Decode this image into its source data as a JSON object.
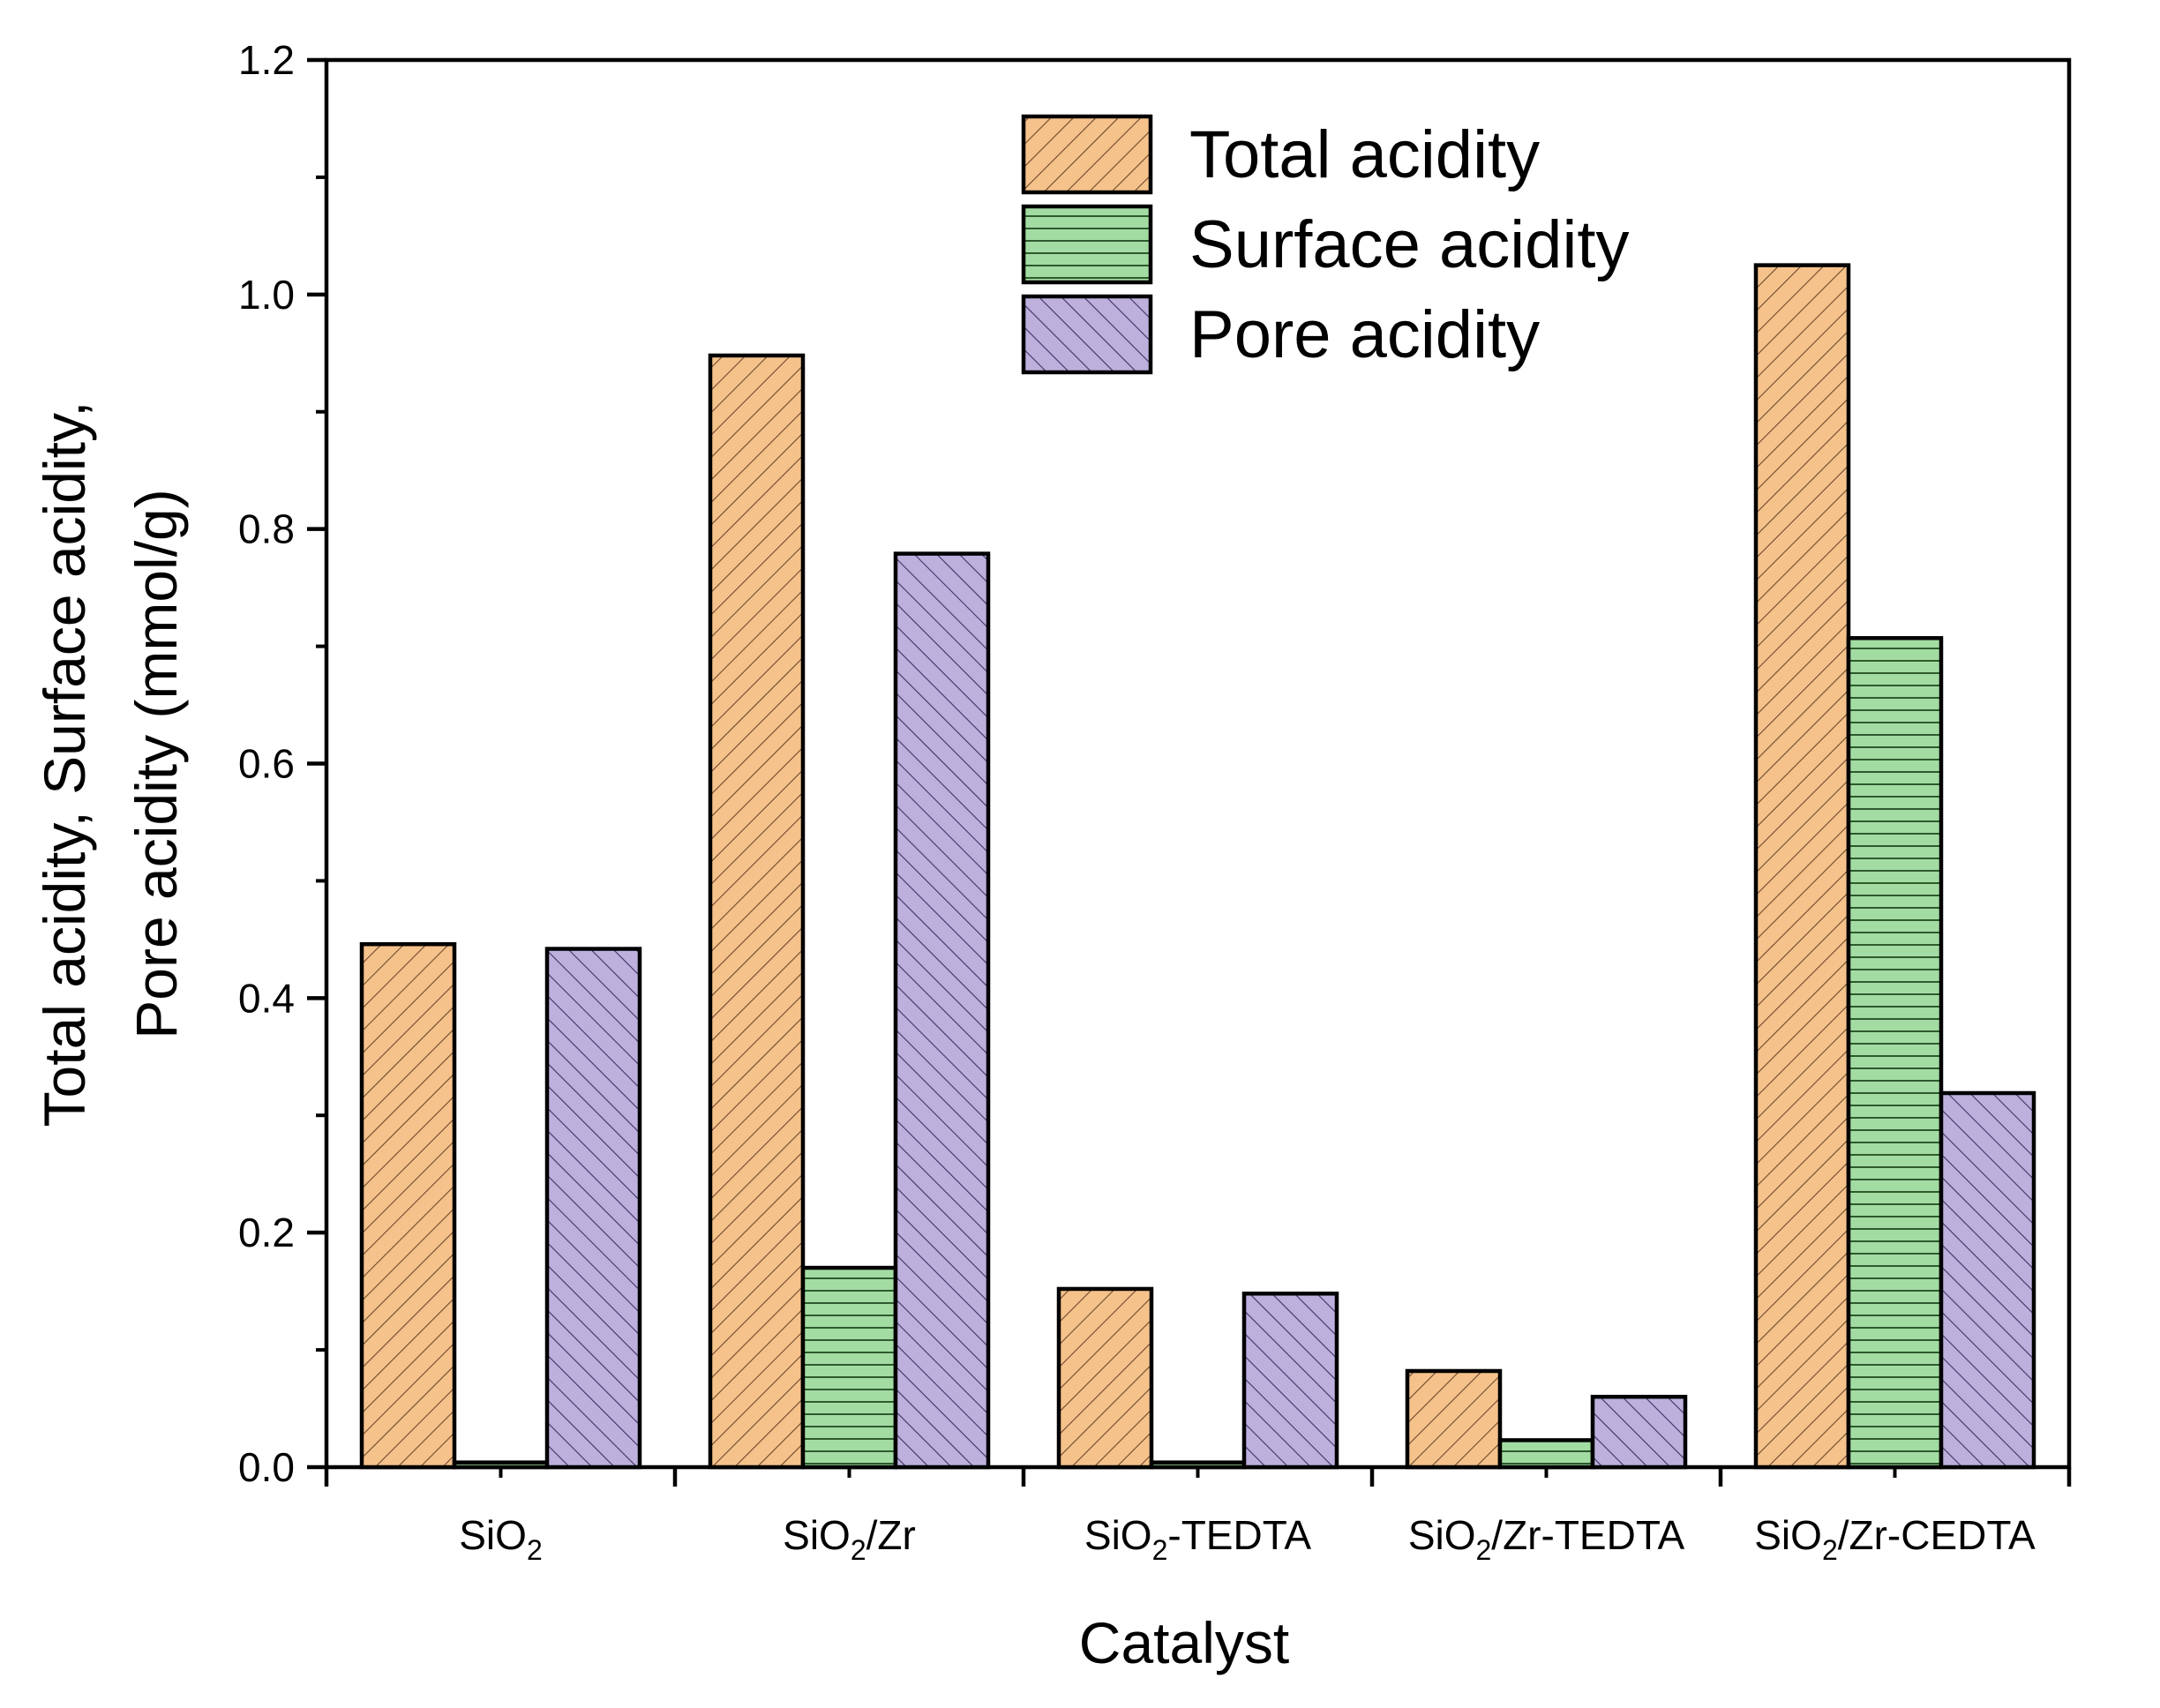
{
  "chart_data": {
    "type": "bar",
    "title": "",
    "xlabel": "Catalyst",
    "ylabel_lines": [
      "Total acidity, Surface acidity,",
      "Pore acidity (mmol/g)"
    ],
    "ylim": [
      0,
      1.2
    ],
    "y_ticks": [
      "0.0",
      "0.2",
      "0.4",
      "0.6",
      "0.8",
      "1.0",
      "1.2"
    ],
    "y_tick_values": [
      0,
      0.2,
      0.4,
      0.6,
      0.8,
      1.0,
      1.2
    ],
    "grid": false,
    "legend_position": "top-center",
    "categories": [
      {
        "base": "SiO",
        "sub": "2",
        "rest": ""
      },
      {
        "base": "SiO",
        "sub": "2",
        "rest": "/Zr"
      },
      {
        "base": "SiO",
        "sub": "2",
        "rest": "-TEDTA"
      },
      {
        "base": "SiO",
        "sub": "2",
        "rest": "/Zr-TEDTA"
      },
      {
        "base": "SiO",
        "sub": "2",
        "rest": "/Zr-CEDTA"
      }
    ],
    "series": [
      {
        "name": "Total acidity",
        "color": "#f6c28b",
        "pattern": "diag-forward",
        "values": [
          0.446,
          0.948,
          0.152,
          0.082,
          1.025
        ]
      },
      {
        "name": "Surface acidity",
        "color": "#a3dca3",
        "pattern": "horizontal",
        "values": [
          0.004,
          0.17,
          0.004,
          0.023,
          0.707
        ]
      },
      {
        "name": "Pore acidity",
        "color": "#bdb0dd",
        "pattern": "diag-back",
        "values": [
          0.442,
          0.779,
          0.148,
          0.06,
          0.319
        ]
      }
    ]
  }
}
